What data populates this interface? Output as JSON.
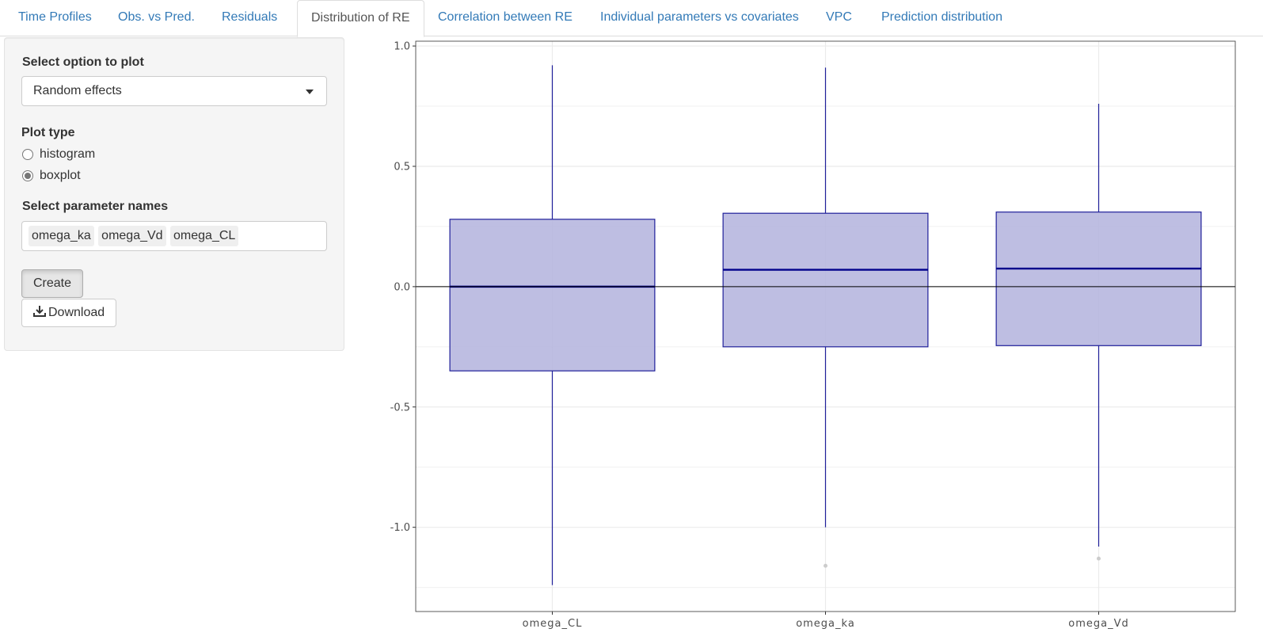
{
  "tabs": [
    {
      "label": "Time Profiles",
      "active": false
    },
    {
      "label": "Obs. vs Pred.",
      "active": false
    },
    {
      "label": "Residuals",
      "active": false
    },
    {
      "label": "Distribution of RE",
      "active": true
    },
    {
      "label": "Correlation between RE",
      "active": false
    },
    {
      "label": "Individual parameters vs covariates",
      "active": false
    },
    {
      "label": "VPC",
      "active": false
    },
    {
      "label": "Prediction distribution",
      "active": false
    }
  ],
  "sidebar": {
    "option_label": "Select option to plot",
    "option_value": "Random effects",
    "plot_type_label": "Plot type",
    "plot_types": [
      {
        "label": "histogram",
        "checked": false
      },
      {
        "label": "boxplot",
        "checked": true
      }
    ],
    "param_label": "Select parameter names",
    "params": [
      "omega_ka",
      "omega_Vd",
      "omega_CL"
    ],
    "create_label": "Create",
    "download_label": "Download"
  },
  "chart_data": {
    "type": "boxplot",
    "categories": [
      "omega_CL",
      "omega_ka",
      "omega_Vd"
    ],
    "boxes": [
      {
        "min": -1.24,
        "q1": -0.35,
        "median": 0.0,
        "q3": 0.28,
        "max": 0.92,
        "outliers": []
      },
      {
        "min": -1.0,
        "q1": -0.25,
        "median": 0.07,
        "q3": 0.305,
        "max": 0.91,
        "outliers": [
          -1.16
        ]
      },
      {
        "min": -1.08,
        "q1": -0.245,
        "median": 0.075,
        "q3": 0.31,
        "max": 0.76,
        "outliers": [
          -1.13
        ]
      }
    ],
    "ylim": [
      -1.35,
      1.02
    ],
    "yticks": [
      -1.0,
      -0.5,
      0.0,
      0.5,
      1.0
    ],
    "ytick_labels": [
      "-1.0",
      "-0.5",
      "0.0",
      "0.5",
      "1.0"
    ],
    "reference_line": 0.0,
    "grid": true,
    "fill_color": "#b3b3dd",
    "line_color": "#20209a",
    "median_color": "#00008b"
  }
}
